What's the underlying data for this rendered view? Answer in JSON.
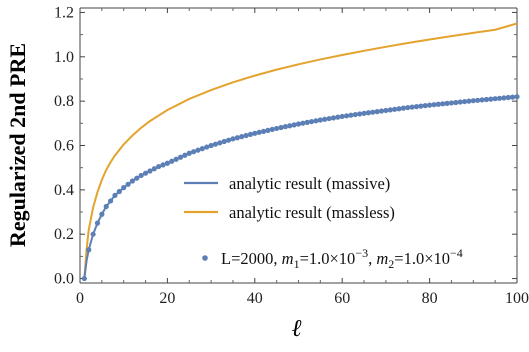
{
  "chart_data": {
    "type": "line",
    "title": "",
    "xlabel": "ℓ",
    "ylabel": "Regularized 2nd PRE",
    "xlim": [
      0,
      100
    ],
    "ylim": [
      -0.02,
      1.22
    ],
    "x_ticks": [
      "0",
      "20",
      "40",
      "60",
      "80",
      "100"
    ],
    "y_ticks": [
      "0.0",
      "0.2",
      "0.4",
      "0.6",
      "0.8",
      "1.0",
      "1.2"
    ],
    "grid": false,
    "legend_placement": "lower-right",
    "series": [
      {
        "name": "analytic result (massive)",
        "style": "line",
        "color": "#5c7fb5",
        "x": [
          1,
          1.5,
          2,
          3,
          4,
          5,
          6,
          7,
          8,
          10,
          12,
          14,
          16,
          18,
          20,
          25,
          30,
          35,
          40,
          45,
          50,
          55,
          60,
          65,
          70,
          75,
          80,
          85,
          90,
          95,
          100
        ],
        "y": [
          0.0,
          0.08,
          0.13,
          0.2,
          0.25,
          0.29,
          0.325,
          0.35,
          0.375,
          0.41,
          0.44,
          0.465,
          0.485,
          0.505,
          0.52,
          0.565,
          0.6,
          0.63,
          0.655,
          0.677,
          0.697,
          0.715,
          0.731,
          0.745,
          0.758,
          0.771,
          0.782,
          0.792,
          0.802,
          0.811,
          0.82
        ]
      },
      {
        "name": "analytic result (massless)",
        "style": "line",
        "color": "#e3a32d",
        "x": [
          1,
          1.5,
          2,
          3,
          4,
          5,
          6,
          7,
          8,
          10,
          12,
          14,
          16,
          18,
          20,
          25,
          30,
          35,
          40,
          45,
          50,
          55,
          60,
          65,
          70,
          75,
          80,
          85,
          90,
          95,
          100
        ],
        "y": [
          0.0,
          0.13,
          0.22,
          0.32,
          0.39,
          0.445,
          0.49,
          0.525,
          0.555,
          0.605,
          0.645,
          0.68,
          0.71,
          0.735,
          0.76,
          0.81,
          0.85,
          0.885,
          0.915,
          0.942,
          0.966,
          0.988,
          1.008,
          1.027,
          1.045,
          1.062,
          1.078,
          1.093,
          1.108,
          1.122,
          1.15
        ]
      },
      {
        "name_parts": [
          "L=2000, ",
          "m",
          "1",
          "=1.0×10",
          "−3",
          ", ",
          "m",
          "2",
          "=1.0×10",
          "−4"
        ],
        "style": "points",
        "color": "#5c7fb5",
        "x_range": [
          1,
          100
        ]
      }
    ]
  }
}
